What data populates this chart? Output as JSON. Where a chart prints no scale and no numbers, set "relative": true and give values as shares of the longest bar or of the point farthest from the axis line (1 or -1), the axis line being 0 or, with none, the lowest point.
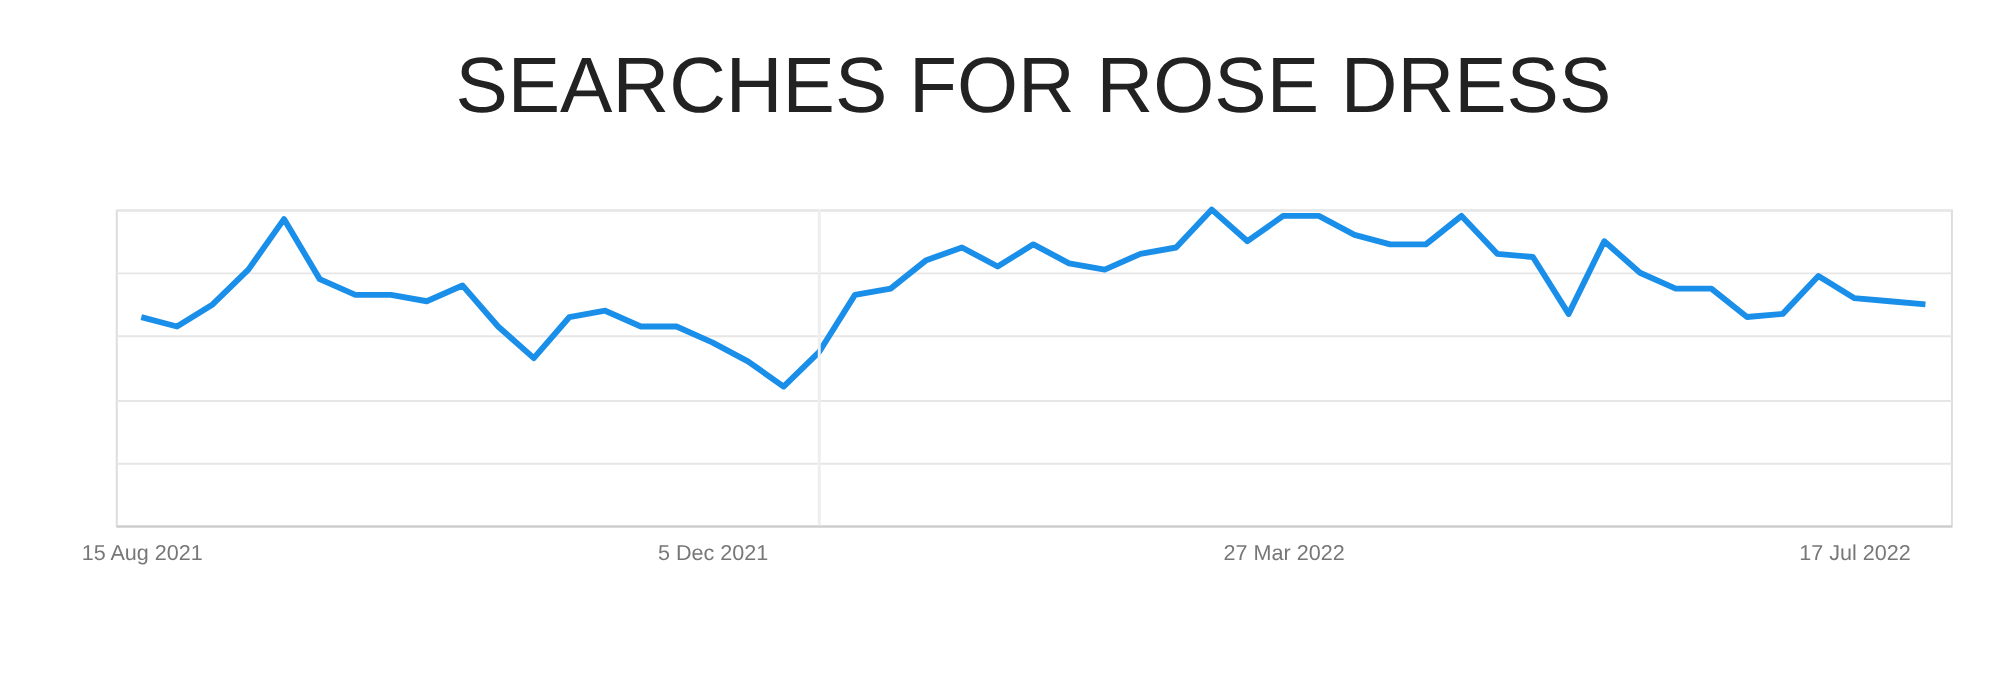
{
  "chart_data": {
    "type": "line",
    "title": "SEARCHES FOR ROSE DRESS",
    "relative": true,
    "grid": "y",
    "marker": "none",
    "line_style": "solid",
    "x": [
      "2021-08-15",
      "2021-08-22",
      "2021-08-29",
      "2021-09-05",
      "2021-09-12",
      "2021-09-19",
      "2021-09-26",
      "2021-10-03",
      "2021-10-10",
      "2021-10-17",
      "2021-10-24",
      "2021-10-31",
      "2021-11-07",
      "2021-11-14",
      "2021-11-21",
      "2021-11-28",
      "2021-12-05",
      "2021-12-12",
      "2021-12-19",
      "2021-12-26",
      "2022-01-02",
      "2022-01-09",
      "2022-01-16",
      "2022-01-23",
      "2022-01-30",
      "2022-02-06",
      "2022-02-13",
      "2022-02-20",
      "2022-02-27",
      "2022-03-06",
      "2022-03-13",
      "2022-03-20",
      "2022-03-27",
      "2022-04-03",
      "2022-04-10",
      "2022-04-17",
      "2022-04-24",
      "2022-05-01",
      "2022-05-08",
      "2022-05-15",
      "2022-05-22",
      "2022-05-29",
      "2022-06-05",
      "2022-06-12",
      "2022-06-19",
      "2022-06-26",
      "2022-07-03",
      "2022-07-10",
      "2022-07-17",
      "2022-07-24",
      "2022-07-31"
    ],
    "series": [
      {
        "color": "#1a8fea",
        "values": [
          0.66,
          0.63,
          0.7,
          0.81,
          0.97,
          0.78,
          0.73,
          0.73,
          0.71,
          0.76,
          0.63,
          0.53,
          0.66,
          0.68,
          0.63,
          0.63,
          0.58,
          0.52,
          0.44,
          0.55,
          0.73,
          0.75,
          0.84,
          0.88,
          0.82,
          0.89,
          0.83,
          0.81,
          0.86,
          0.88,
          1.0,
          0.9,
          0.98,
          0.98,
          0.92,
          0.89,
          0.89,
          0.98,
          0.86,
          0.85,
          0.67,
          0.9,
          0.8,
          0.75,
          0.75,
          0.66,
          0.67,
          0.79,
          0.72,
          0.71,
          0.7
        ]
      }
    ],
    "xlim": [
      "2021-08-10",
      "2022-08-05"
    ],
    "xticks": [
      {
        "value": "2021-08-15",
        "label": "15 Aug 2021"
      },
      {
        "value": "2021-12-05",
        "label": "5 Dec 2021"
      },
      {
        "value": "2022-03-27",
        "label": "27 Mar 2022"
      },
      {
        "value": "2022-07-17",
        "label": "17 Jul 2022"
      }
    ],
    "ref_lines": [
      {
        "axis": "x",
        "value": "2021-12-26",
        "label": null,
        "color": "#eeeeee"
      }
    ]
  }
}
